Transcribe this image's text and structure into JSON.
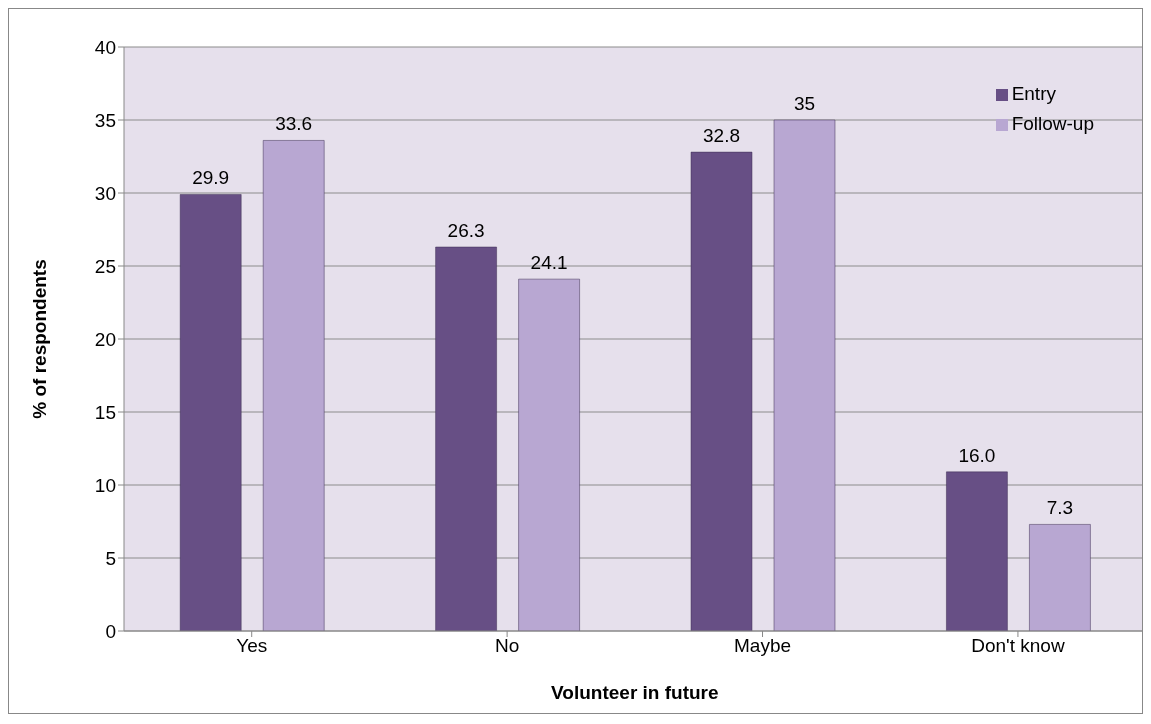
{
  "chart_data": {
    "type": "bar",
    "xlabel": "Volunteer in future",
    "ylabel": "% of respondents",
    "categories": [
      "Yes",
      "No",
      "Maybe",
      "Don't know"
    ],
    "series": [
      {
        "name": "Entry",
        "color": "#674f85",
        "values": [
          29.9,
          26.3,
          32.8,
          10.9
        ],
        "value_labels": [
          "29.9",
          "26.3",
          "32.8",
          null
        ]
      },
      {
        "name": "Follow-up",
        "color": "#b8a7d2",
        "values": [
          33.6,
          24.1,
          35,
          7.3
        ],
        "value_labels": [
          "33.6",
          "24.1",
          "35",
          "7.3"
        ]
      }
    ],
    "ylim": [
      0,
      40
    ],
    "yticks": [
      0,
      5,
      10,
      15,
      20,
      25,
      30,
      35,
      40
    ],
    "grid": "y",
    "legend": "top right",
    "annotations": [
      "16.0"
    ]
  }
}
